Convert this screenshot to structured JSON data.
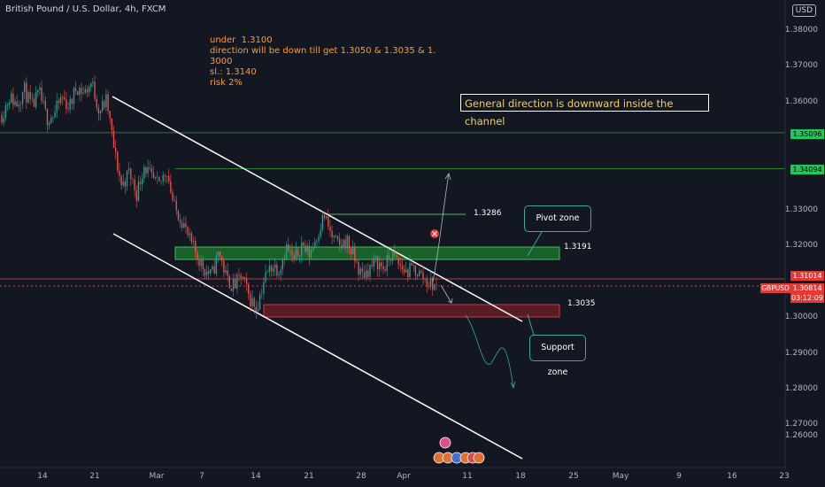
{
  "symbol_title": "British Pound / U.S. Dollar, 4h, FXCM",
  "currency_button": "USD",
  "note_lines": [
    "under  1.3100",
    "",
    "direction will be down till get 1.3050 & 1.3035 & 1.",
    "3000",
    "sl.: 1.3140",
    "",
    "risk 2%"
  ],
  "general_direction_text": "General direction is downward inside the channel",
  "annotations": {
    "target_level": "1.3286",
    "pivot_level": "1.3191",
    "support_level": "1.3035",
    "pivot_zone_label": "Pivot zone",
    "support_zone_label": "Support zone",
    "red_marker_icon": "x-circle-icon"
  },
  "price_axis": {
    "labels": [
      "1.38000",
      "1.37000",
      "1.36000",
      "1.33000",
      "1.32000",
      "1.30000",
      "1.29000",
      "1.28000",
      "1.27000",
      "1.26000"
    ],
    "badges": {
      "green1": "1.35096",
      "green2": "1.34094",
      "red": "1.31014",
      "symbol": "GBPUSD",
      "current": "1.30814",
      "countdown": "03:12:09"
    }
  },
  "time_axis": {
    "labels": [
      "14",
      "21",
      "Mar",
      "7",
      "14",
      "21",
      "28",
      "Apr",
      "11",
      "18",
      "25",
      "May",
      "9",
      "16",
      "23"
    ]
  },
  "colors": {
    "background": "#131722",
    "up_candle": "#26a69a",
    "down_candle": "#ef5350",
    "pivot_zone": "#1e7a2e",
    "support_zone": "#8b1f25",
    "green_line": "#2e9e3c",
    "red_line": "#e04a4a",
    "note_text": "#ff9a2e"
  },
  "chart_data": {
    "type": "candlestick",
    "symbol": "GBPUSD",
    "timeframe": "4h",
    "horizontal_levels": [
      1.35096,
      1.34094,
      1.31014,
      1.30814,
      1.3286,
      1.3191,
      1.3035
    ],
    "pivot_zone": [
      1.317,
      1.3205
    ],
    "support_zone": [
      1.3015,
      1.305
    ],
    "close_path": [
      1.356,
      1.361,
      1.359,
      1.363,
      1.358,
      1.362,
      1.355,
      1.356,
      1.361,
      1.358,
      1.364,
      1.362,
      1.365,
      1.357,
      1.36,
      1.346,
      1.336,
      1.34,
      1.334,
      1.342,
      1.338,
      1.336,
      1.341,
      1.33,
      1.327,
      1.321,
      1.317,
      1.313,
      1.311,
      1.318,
      1.31,
      1.308,
      1.311,
      1.305,
      1.302,
      1.31,
      1.314,
      1.313,
      1.319,
      1.315,
      1.32,
      1.317,
      1.322,
      1.328,
      1.322,
      1.319,
      1.321,
      1.316,
      1.311,
      1.313,
      1.315,
      1.313,
      1.317,
      1.314,
      1.312,
      1.313,
      1.311,
      1.309,
      1.308
    ]
  }
}
